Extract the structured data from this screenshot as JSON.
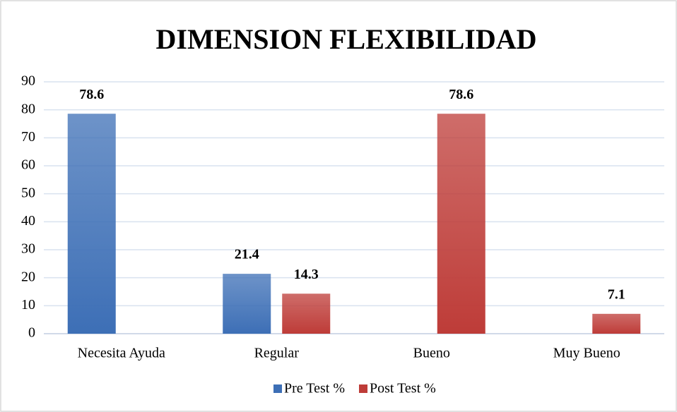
{
  "chart_data": {
    "type": "bar",
    "title": "DIMENSION FLEXIBILIDAD",
    "categories": [
      "Necesita Ayuda",
      "Regular",
      "Bueno",
      "Muy Bueno"
    ],
    "series": [
      {
        "name": "Pre Test %",
        "color": "#3d6fb6",
        "values": [
          78.6,
          21.4,
          null,
          null
        ]
      },
      {
        "name": "Post Test %",
        "color": "#be3c38",
        "values": [
          null,
          14.3,
          78.6,
          7.1
        ]
      }
    ],
    "ylim": [
      0,
      90
    ],
    "yticks": [
      0,
      10,
      20,
      30,
      40,
      50,
      60,
      70,
      80,
      90
    ],
    "grid": true,
    "legend": "bottom"
  }
}
